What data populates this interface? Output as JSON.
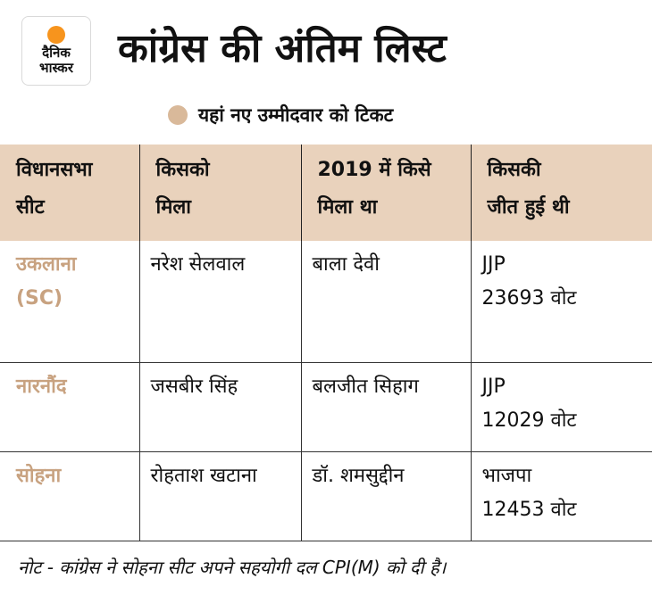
{
  "logo": {
    "line1": "दैनिक",
    "line2": "भास्कर"
  },
  "title": "कांग्रेस की अंतिम लिस्ट",
  "legend": {
    "label": "यहां नए उम्मीदवार को टिकट",
    "color": "#d9b99a"
  },
  "colors": {
    "header_bg": "#e9d2bc",
    "seat_text": "#c8a280",
    "logo_sun": "#f7941d"
  },
  "table": {
    "headers": [
      [
        "विधानसभा",
        "सीट"
      ],
      [
        "किसको",
        "मिला"
      ],
      [
        "2019 में किसे",
        "मिला था"
      ],
      [
        "किसकी",
        "जीत हुई थी"
      ]
    ],
    "rows": [
      {
        "seat": [
          "उकलाना",
          "(SC)"
        ],
        "candidate": "नरेश सेलवाल",
        "prev_candidate": "बाला देवी",
        "winner": [
          "JJP",
          "23693 वोट"
        ]
      },
      {
        "seat": [
          "नारनौंद"
        ],
        "candidate": "जसबीर सिंह",
        "prev_candidate": "बलजीत सिहाग",
        "winner": [
          "JJP",
          "12029 वोट"
        ]
      },
      {
        "seat": [
          "सोहना"
        ],
        "candidate": "रोहताश खटाना",
        "prev_candidate": "डॉ. शमसुद्दीन",
        "winner": [
          "भाजपा",
          "12453 वोट"
        ]
      }
    ]
  },
  "note": "नोट - कांग्रेस ने सोहना सीट अपने सहयोगी दल CPI(M) को दी है।"
}
